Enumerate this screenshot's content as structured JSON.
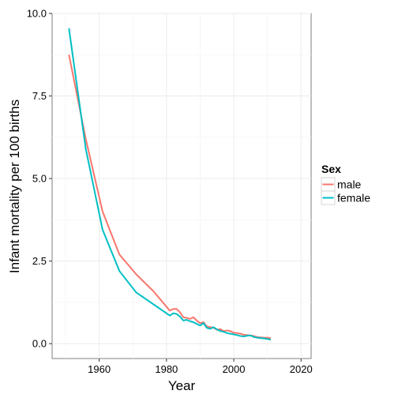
{
  "chart_data": {
    "type": "line",
    "xlabel": "Year",
    "ylabel": "Infant mortality per 100 births",
    "xlim": [
      1946,
      2023
    ],
    "ylim": [
      -0.45,
      10.0
    ],
    "xticks": [
      1960,
      1980,
      2000,
      2020
    ],
    "xtick_labels": [
      "1960",
      "1980",
      "2000",
      "2020"
    ],
    "yticks": [
      0.0,
      2.5,
      5.0,
      7.5,
      10.0
    ],
    "ytick_labels": [
      "0.0",
      "2.5",
      "5.0",
      "7.5",
      "10.0"
    ],
    "grid": true,
    "legend": {
      "title": "Sex",
      "position": "right"
    },
    "series": [
      {
        "name": "male",
        "color": "#F8766D",
        "x": [
          1951,
          1956,
          1961,
          1966,
          1971,
          1976,
          1981,
          1982,
          1983,
          1984,
          1985,
          1986,
          1987,
          1988,
          1989,
          1990,
          1991,
          1992,
          1993,
          1994,
          1995,
          1996,
          1997,
          1998,
          1999,
          2000,
          2001,
          2002,
          2003,
          2004,
          2005,
          2006,
          2007,
          2008,
          2009,
          2010,
          2011
        ],
        "y": [
          8.75,
          6.2,
          4.0,
          2.7,
          2.1,
          1.6,
          1.0,
          1.05,
          1.05,
          0.95,
          0.8,
          0.78,
          0.75,
          0.8,
          0.7,
          0.62,
          0.65,
          0.52,
          0.5,
          0.48,
          0.42,
          0.44,
          0.38,
          0.4,
          0.38,
          0.33,
          0.32,
          0.3,
          0.27,
          0.26,
          0.25,
          0.23,
          0.2,
          0.19,
          0.18,
          0.18,
          0.17
        ]
      },
      {
        "name": "female",
        "color": "#00BFC4",
        "x": [
          1951,
          1956,
          1961,
          1966,
          1971,
          1976,
          1981,
          1982,
          1983,
          1984,
          1985,
          1986,
          1987,
          1988,
          1989,
          1990,
          1991,
          1992,
          1993,
          1994,
          1995,
          1996,
          1997,
          1998,
          1999,
          2000,
          2001,
          2002,
          2003,
          2004,
          2005,
          2006,
          2007,
          2008,
          2009,
          2010,
          2011
        ],
        "y": [
          9.55,
          5.9,
          3.45,
          2.2,
          1.55,
          1.2,
          0.85,
          0.92,
          0.9,
          0.82,
          0.7,
          0.72,
          0.68,
          0.65,
          0.6,
          0.55,
          0.62,
          0.48,
          0.45,
          0.5,
          0.43,
          0.38,
          0.36,
          0.32,
          0.3,
          0.28,
          0.26,
          0.23,
          0.22,
          0.24,
          0.25,
          0.2,
          0.18,
          0.17,
          0.16,
          0.14,
          0.12
        ]
      }
    ]
  }
}
